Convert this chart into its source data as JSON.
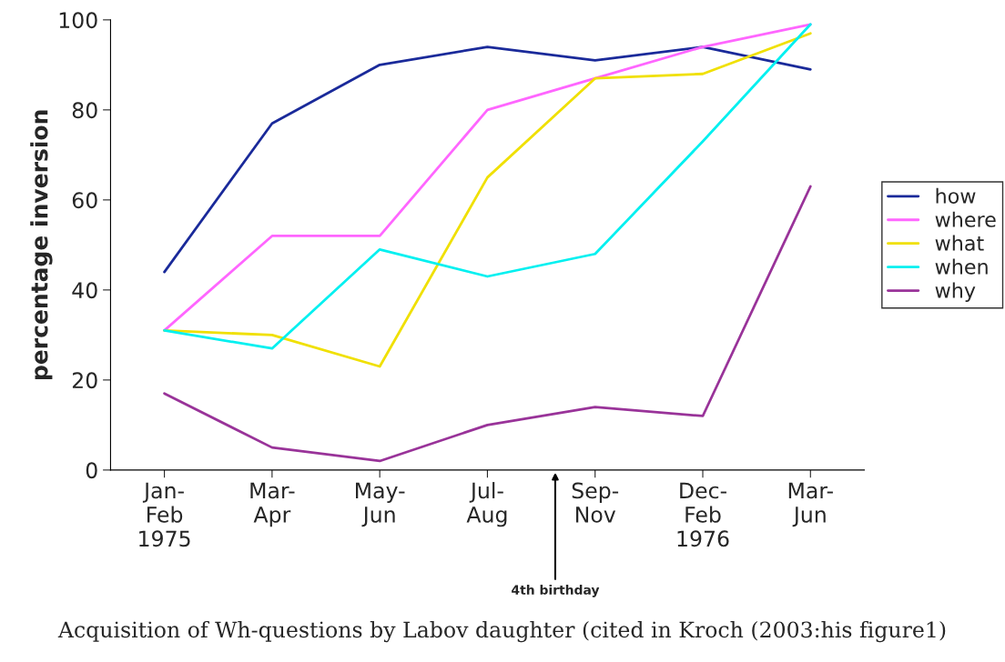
{
  "chart_data": {
    "type": "line",
    "ylabel": "percentage inversion",
    "categories": [
      "Jan-\nFeb\n1975",
      "Mar-\nApr",
      "May-\nJun",
      "Jul-\nAug",
      "Sep-\nNov",
      "Dec-\nFeb\n1976",
      "Mar-\nJun"
    ],
    "series": [
      {
        "name": "how",
        "color": "#1a2a9a",
        "values": [
          44,
          77,
          90,
          94,
          91,
          94,
          89
        ]
      },
      {
        "name": "where",
        "color": "#ff66ff",
        "values": [
          31,
          52,
          52,
          80,
          87,
          94,
          99
        ]
      },
      {
        "name": "what",
        "color": "#f0e000",
        "values": [
          31,
          30,
          23,
          65,
          87,
          88,
          97
        ]
      },
      {
        "name": "when",
        "color": "#00f0f0",
        "values": [
          31,
          27,
          49,
          43,
          48,
          73,
          99
        ]
      },
      {
        "name": "why",
        "color": "#993399",
        "values": [
          17,
          5,
          2,
          10,
          14,
          12,
          63
        ]
      }
    ],
    "ylim": [
      0,
      100
    ],
    "yticks": [
      0,
      20,
      40,
      60,
      80,
      100
    ],
    "grid": false,
    "legend": "right",
    "marker": "none",
    "line_style": "solid",
    "annotations": [
      "4th birthday",
      "Acquisition of Wh-questions by Labov daughter (cited in Kroch (2003:his figure1)"
    ]
  }
}
